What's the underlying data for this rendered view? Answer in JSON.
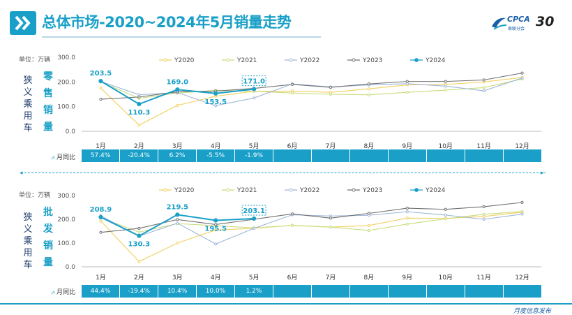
{
  "title": "总体市场-2020~2024年5月销量走势",
  "logo": {
    "brand": "CPCA",
    "sub": "乘联分会",
    "anniv": "30"
  },
  "side_label": "狭义乘用车",
  "footer": "月度信息发布",
  "colors": {
    "accent": "#1aa0c8",
    "Y2020": "#f2d060",
    "Y2021": "#c8dc7c",
    "Y2022": "#9fb6d8",
    "Y2023": "#707070",
    "Y2024": "#1aa0c8"
  },
  "chart_data": [
    {
      "type": "line",
      "unit_label": "单位：万辆",
      "metric": "零售销量",
      "categories": [
        "1月",
        "2月",
        "3月",
        "4月",
        "5月",
        "6月",
        "7月",
        "8月",
        "9月",
        "10月",
        "11月",
        "12月"
      ],
      "ylim": [
        0,
        300
      ],
      "yticks": [
        "0.0",
        "100.0",
        "200.0",
        "300.0"
      ],
      "legend_position": "top",
      "series": [
        {
          "name": "Y2020",
          "values": [
            175,
            25,
            105,
            142,
            162,
            163,
            158,
            172,
            188,
            190,
            200,
            218
          ]
        },
        {
          "name": "Y2021",
          "values": [
            200,
            134,
            155,
            166,
            162,
            155,
            150,
            148,
            158,
            167,
            177,
            212
          ]
        },
        {
          "name": "Y2022",
          "values": [
            202,
            148,
            157,
            104,
            135,
            192,
            180,
            188,
            193,
            183,
            164,
            216
          ]
        },
        {
          "name": "Y2023",
          "values": [
            130,
            139,
            160,
            163,
            174,
            190,
            178,
            192,
            202,
            202,
            208,
            236
          ]
        },
        {
          "name": "Y2024",
          "values": [
            203.5,
            110.3,
            169.0,
            153.5,
            171.0
          ]
        }
      ],
      "labels": [
        "203.5",
        "110.3",
        "169.0",
        "153.5",
        "171.0"
      ],
      "yoy_label": "月同比",
      "yoy": [
        "57.4%",
        "-20.4%",
        "6.2%",
        "-5.5%",
        "-1.9%",
        "",
        "",
        "",
        "",
        "",
        "",
        ""
      ]
    },
    {
      "type": "line",
      "unit_label": "单位：万辆",
      "metric": "批发销量",
      "categories": [
        "1月",
        "2月",
        "3月",
        "4月",
        "5月",
        "6月",
        "7月",
        "8月",
        "9月",
        "10月",
        "11月",
        "12月"
      ],
      "ylim": [
        0,
        300
      ],
      "yticks": [
        "0.0",
        "100.0",
        "200.0",
        "300.0"
      ],
      "legend_position": "top",
      "series": [
        {
          "name": "Y2020",
          "values": [
            193,
            22,
            100,
            155,
            162,
            175,
            167,
            174,
            205,
            204,
            212,
            230
          ]
        },
        {
          "name": "Y2021",
          "values": [
            207,
            146,
            182,
            173,
            164,
            174,
            167,
            153,
            180,
            202,
            221,
            233
          ]
        },
        {
          "name": "Y2022",
          "values": [
            215,
            129,
            184,
            96,
            162,
            219,
            214,
            217,
            232,
            218,
            200,
            222
          ]
        },
        {
          "name": "Y2023",
          "values": [
            145,
            162,
            199,
            178,
            200,
            223,
            205,
            225,
            247,
            242,
            253,
            271
          ]
        },
        {
          "name": "Y2024",
          "values": [
            208.9,
            130.3,
            219.5,
            195.5,
            203.1
          ]
        }
      ],
      "labels": [
        "208.9",
        "130.3",
        "219.5",
        "195.5",
        "203.1"
      ],
      "yoy_label": "月同比",
      "yoy": [
        "44.4%",
        "-19.4%",
        "10.4%",
        "10.0%",
        "1.2%",
        "",
        "",
        "",
        "",
        "",
        "",
        ""
      ]
    }
  ]
}
